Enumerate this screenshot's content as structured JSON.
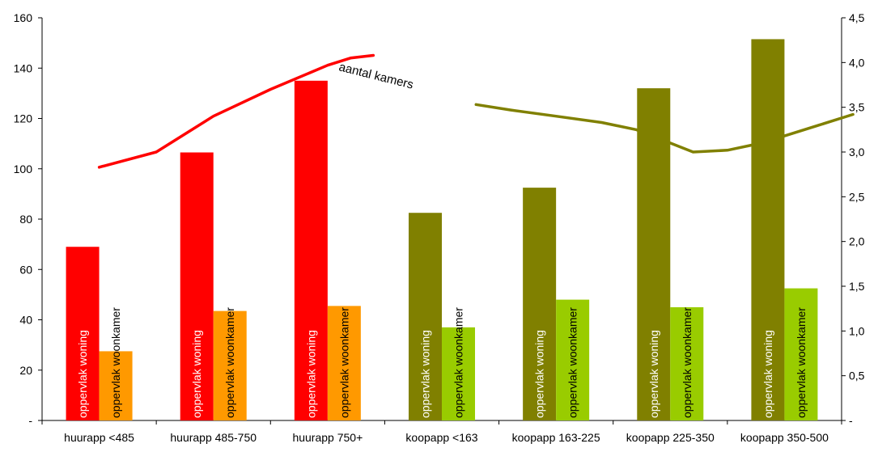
{
  "chart_data": {
    "type": "bar",
    "categories": [
      "huurapp <485",
      "huurapp 485-750",
      "huurapp 750+",
      "koopapp <163",
      "koopapp 163-225",
      "koopapp 225-350",
      "koopapp 350-500"
    ],
    "series": [
      {
        "name": "opperlak woning",
        "label": "oppervlak woning",
        "values": [
          69,
          106.5,
          135,
          82.5,
          92.5,
          132,
          151.5
        ],
        "colors": [
          "#ff0000",
          "#ff0000",
          "#ff0000",
          "#808000",
          "#808000",
          "#808000",
          "#808000"
        ]
      },
      {
        "name": "oppervlak woonkamer",
        "label": "oppervlak woonkamer",
        "values": [
          27.5,
          43.5,
          45.5,
          37,
          48,
          45,
          52.5
        ],
        "colors": [
          "#ff9900",
          "#ff9900",
          "#ff9900",
          "#99cc00",
          "#99cc00",
          "#99cc00",
          "#99cc00"
        ]
      }
    ],
    "lines": [
      {
        "name": "aantal kamers",
        "axis": "right",
        "color": "#ff0000",
        "points": [
          [
            0,
            2.83
          ],
          [
            0.5,
            3.0
          ],
          [
            1,
            3.4
          ],
          [
            1.5,
            3.7
          ],
          [
            2,
            3.97
          ],
          [
            2.2,
            4.05
          ],
          [
            2.4,
            4.08
          ]
        ]
      },
      {
        "name": "aantal kamers",
        "axis": "right",
        "color": "#808000",
        "points": [
          [
            3.3,
            3.53
          ],
          [
            3.6,
            3.47
          ],
          [
            4,
            3.4
          ],
          [
            4.4,
            3.33
          ],
          [
            4.7,
            3.25
          ],
          [
            5,
            3.1
          ],
          [
            5.2,
            3.0
          ],
          [
            5.5,
            3.02
          ],
          [
            5.8,
            3.1
          ],
          [
            6.3,
            3.3
          ],
          [
            6.6,
            3.42
          ]
        ]
      }
    ],
    "annotation": "aantal kamers",
    "y_left": {
      "min": 0,
      "max": 160,
      "step": 20,
      "ticks": [
        "-",
        "20",
        "40",
        "60",
        "80",
        "100",
        "120",
        "140",
        "160"
      ]
    },
    "y_right": {
      "min": 0,
      "max": 4.5,
      "step": 0.5,
      "ticks": [
        "-",
        "0,5",
        "1,0",
        "1,5",
        "2,0",
        "2,5",
        "3,0",
        "3,5",
        "4,0",
        "4,5"
      ]
    },
    "grid": false,
    "legend": "none"
  }
}
